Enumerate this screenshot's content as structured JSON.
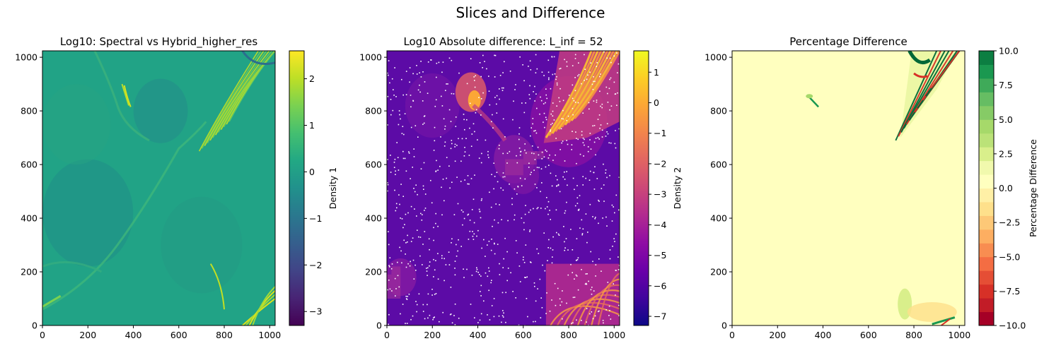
{
  "suptitle": "Slices and Difference",
  "chart_data": [
    {
      "type": "heatmap",
      "title": "Log10: Spectral vs Hybrid_higher_res",
      "xlim": [
        0,
        1024
      ],
      "ylim": [
        0,
        1024
      ],
      "x_ticks": [
        "0",
        "200",
        "400",
        "600",
        "800",
        "1000"
      ],
      "y_ticks": [
        "0",
        "200",
        "400",
        "600",
        "800",
        "1000"
      ],
      "colormap": "viridis",
      "colorbar": {
        "label": "Density 1",
        "range": [
          -3.3,
          2.6
        ],
        "ticks": [
          "−3",
          "−2",
          "−1",
          "0",
          "1",
          "2"
        ]
      },
      "background_color": "#21a386",
      "features": [
        "thin bright filaments near (380, 850)",
        "striped bright feature upper right (700–1000, 700–1024)",
        "bright filaments lower right (800–1024, 0–180)"
      ]
    },
    {
      "type": "heatmap",
      "title": "Log10 Absolute difference: L_inf = 52",
      "xlim": [
        0,
        1024
      ],
      "ylim": [
        0,
        1024
      ],
      "x_ticks": [
        "0",
        "200",
        "400",
        "600",
        "800",
        "1000"
      ],
      "y_ticks": [
        "0",
        "200",
        "400",
        "600",
        "800",
        "1000"
      ],
      "colormap": "plasma",
      "colorbar": {
        "label": "Density 2",
        "range": [
          -7.3,
          1.7
        ],
        "ticks": [
          "−7",
          "−6",
          "−5",
          "−4",
          "−3",
          "−2",
          "−1",
          "0",
          "1"
        ]
      },
      "background_color": "#5c0ba6",
      "features": [
        "scattered white speckles (zero difference)",
        "bright upper-right region",
        "bright blob near (380, 850)",
        "bright lower-right region"
      ]
    },
    {
      "type": "heatmap",
      "title": "Percentage Difference",
      "xlim": [
        0,
        1024
      ],
      "ylim": [
        0,
        1024
      ],
      "x_ticks": [
        "0",
        "200",
        "400",
        "600",
        "800",
        "1000"
      ],
      "y_ticks": [
        "0",
        "200",
        "400",
        "600",
        "800",
        "1000"
      ],
      "colormap": "RdYlGn (discrete)",
      "colorbar": {
        "label": "Percentage Difference",
        "range": [
          -10,
          10
        ],
        "ticks": [
          "−10.0",
          "−7.5",
          "−5.0",
          "−2.5",
          "0.0",
          "2.5",
          "5.0",
          "7.5",
          "10.0"
        ],
        "levels": 20
      },
      "background_color": "#ffffbf",
      "features": [
        "green/red streaks upper right (720–970, 700–1024)",
        "small streak near (360, 840)",
        "faint patches lower right (720–980, 0–140)"
      ]
    }
  ]
}
